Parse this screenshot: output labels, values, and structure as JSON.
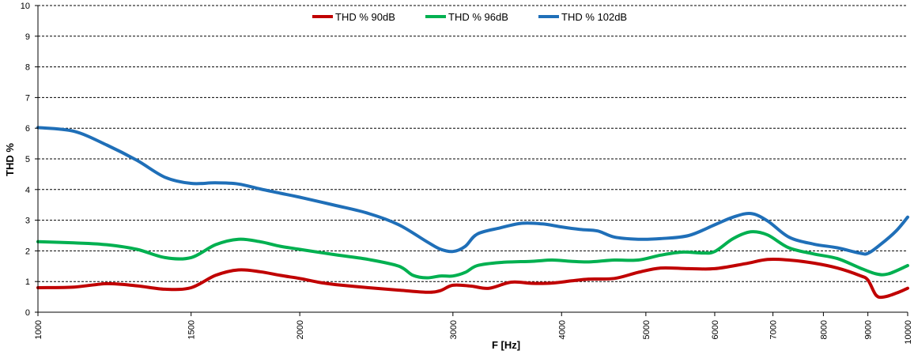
{
  "chart_data": {
    "type": "line",
    "xscale": "log",
    "xlabel": "F [Hz]",
    "ylabel": "THD %",
    "xlim": [
      1000,
      10000
    ],
    "ylim": [
      0,
      10
    ],
    "yticks": [
      "0",
      "1",
      "2",
      "3",
      "4",
      "5",
      "6",
      "7",
      "8",
      "9",
      "10"
    ],
    "xticks": [
      "1000",
      "1500",
      "2000",
      "3000",
      "4000",
      "5000",
      "6000",
      "7000",
      "8000",
      "9000",
      "10000"
    ],
    "grid": true,
    "legend_position": "top",
    "series": [
      {
        "name": "THD % 90dB",
        "color": "#c00000",
        "points": [
          [
            1000,
            0.8
          ],
          [
            1100,
            0.82
          ],
          [
            1200,
            0.93
          ],
          [
            1300,
            0.86
          ],
          [
            1400,
            0.75
          ],
          [
            1500,
            0.8
          ],
          [
            1600,
            1.2
          ],
          [
            1700,
            1.38
          ],
          [
            1800,
            1.32
          ],
          [
            1900,
            1.2
          ],
          [
            2000,
            1.1
          ],
          [
            2100,
            0.98
          ],
          [
            2200,
            0.9
          ],
          [
            2400,
            0.8
          ],
          [
            2600,
            0.72
          ],
          [
            2800,
            0.65
          ],
          [
            2900,
            0.7
          ],
          [
            3000,
            0.88
          ],
          [
            3150,
            0.85
          ],
          [
            3300,
            0.78
          ],
          [
            3500,
            0.98
          ],
          [
            3700,
            0.94
          ],
          [
            3900,
            0.95
          ],
          [
            4100,
            1.02
          ],
          [
            4300,
            1.08
          ],
          [
            4600,
            1.1
          ],
          [
            4900,
            1.3
          ],
          [
            5200,
            1.44
          ],
          [
            5600,
            1.42
          ],
          [
            6000,
            1.42
          ],
          [
            6500,
            1.58
          ],
          [
            6900,
            1.72
          ],
          [
            7300,
            1.7
          ],
          [
            7800,
            1.6
          ],
          [
            8300,
            1.44
          ],
          [
            8800,
            1.2
          ],
          [
            9000,
            1.05
          ],
          [
            9200,
            0.55
          ],
          [
            9400,
            0.5
          ],
          [
            9700,
            0.62
          ],
          [
            10000,
            0.78
          ]
        ]
      },
      {
        "name": "THD % 96dB",
        "color": "#00b050",
        "points": [
          [
            1000,
            2.3
          ],
          [
            1100,
            2.26
          ],
          [
            1200,
            2.2
          ],
          [
            1300,
            2.05
          ],
          [
            1400,
            1.78
          ],
          [
            1500,
            1.78
          ],
          [
            1600,
            2.2
          ],
          [
            1700,
            2.38
          ],
          [
            1800,
            2.3
          ],
          [
            1900,
            2.15
          ],
          [
            2000,
            2.05
          ],
          [
            2200,
            1.87
          ],
          [
            2400,
            1.72
          ],
          [
            2600,
            1.5
          ],
          [
            2700,
            1.2
          ],
          [
            2800,
            1.12
          ],
          [
            2900,
            1.18
          ],
          [
            3000,
            1.18
          ],
          [
            3100,
            1.3
          ],
          [
            3200,
            1.52
          ],
          [
            3400,
            1.62
          ],
          [
            3700,
            1.66
          ],
          [
            3900,
            1.7
          ],
          [
            4100,
            1.66
          ],
          [
            4300,
            1.64
          ],
          [
            4600,
            1.7
          ],
          [
            4900,
            1.7
          ],
          [
            5200,
            1.86
          ],
          [
            5500,
            1.96
          ],
          [
            5800,
            1.93
          ],
          [
            6000,
            1.98
          ],
          [
            6300,
            2.4
          ],
          [
            6600,
            2.62
          ],
          [
            6900,
            2.52
          ],
          [
            7300,
            2.1
          ],
          [
            7800,
            1.9
          ],
          [
            8300,
            1.75
          ],
          [
            8800,
            1.45
          ],
          [
            9200,
            1.25
          ],
          [
            9500,
            1.25
          ],
          [
            10000,
            1.52
          ]
        ]
      },
      {
        "name": "THD % 102dB",
        "color": "#1f6fb8",
        "points": [
          [
            1000,
            6.02
          ],
          [
            1100,
            5.9
          ],
          [
            1200,
            5.45
          ],
          [
            1300,
            4.95
          ],
          [
            1400,
            4.4
          ],
          [
            1500,
            4.2
          ],
          [
            1600,
            4.22
          ],
          [
            1700,
            4.18
          ],
          [
            1800,
            4.02
          ],
          [
            1900,
            3.88
          ],
          [
            2000,
            3.75
          ],
          [
            2200,
            3.48
          ],
          [
            2400,
            3.22
          ],
          [
            2600,
            2.85
          ],
          [
            2800,
            2.3
          ],
          [
            2900,
            2.06
          ],
          [
            3000,
            1.98
          ],
          [
            3100,
            2.15
          ],
          [
            3200,
            2.55
          ],
          [
            3400,
            2.75
          ],
          [
            3600,
            2.9
          ],
          [
            3800,
            2.88
          ],
          [
            4000,
            2.78
          ],
          [
            4200,
            2.7
          ],
          [
            4400,
            2.65
          ],
          [
            4600,
            2.45
          ],
          [
            4900,
            2.38
          ],
          [
            5200,
            2.4
          ],
          [
            5600,
            2.5
          ],
          [
            6000,
            2.85
          ],
          [
            6300,
            3.1
          ],
          [
            6600,
            3.22
          ],
          [
            6900,
            2.98
          ],
          [
            7300,
            2.45
          ],
          [
            7800,
            2.22
          ],
          [
            8300,
            2.1
          ],
          [
            8800,
            1.93
          ],
          [
            9000,
            1.92
          ],
          [
            9300,
            2.2
          ],
          [
            9700,
            2.65
          ],
          [
            10000,
            3.1
          ]
        ]
      }
    ]
  }
}
